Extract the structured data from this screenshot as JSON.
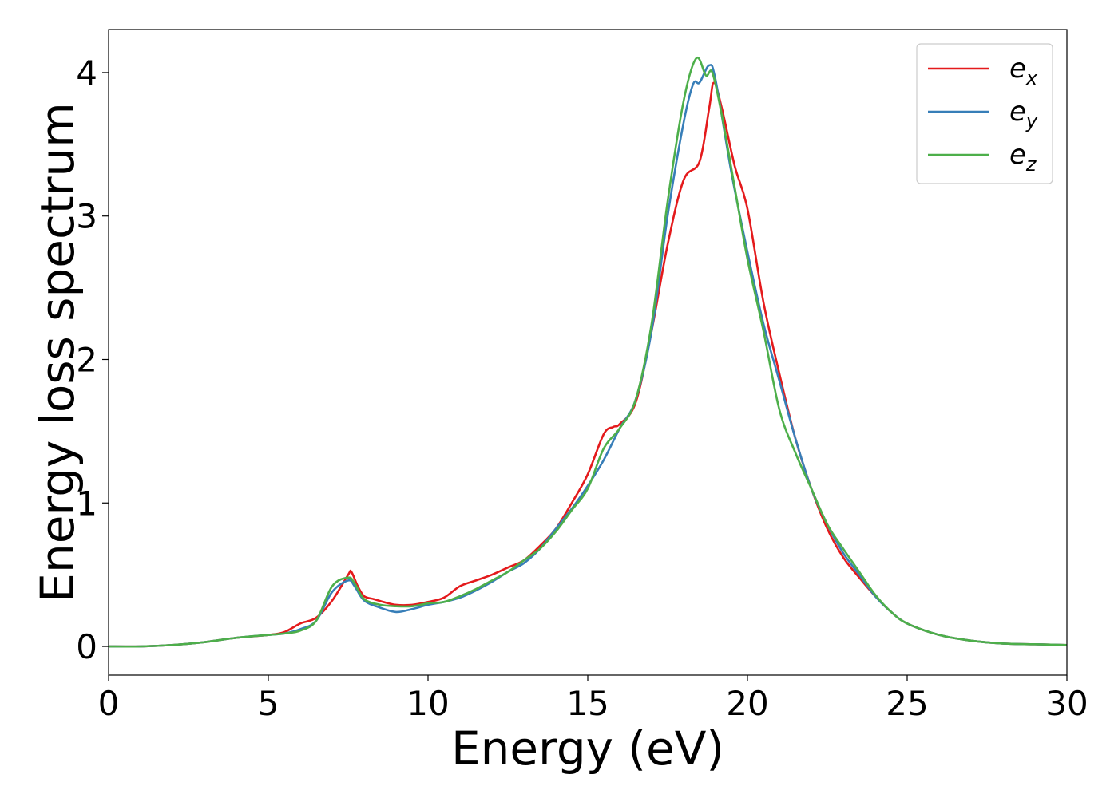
{
  "chart_data": {
    "type": "line",
    "title": "",
    "xlabel": "Energy (eV)",
    "ylabel": "Energy loss spectrum",
    "xlim": [
      0,
      30
    ],
    "ylim": [
      -0.2,
      4.3
    ],
    "xticks": [
      0,
      5,
      10,
      15,
      20,
      25,
      30
    ],
    "yticks": [
      0,
      1,
      2,
      3,
      4
    ],
    "grid": false,
    "legend_position": "top-right",
    "series": [
      {
        "name": "e",
        "subscript": "x",
        "color": "#e41a1c",
        "points": [
          [
            0,
            0.0
          ],
          [
            1,
            0.0
          ],
          [
            2,
            0.01
          ],
          [
            3,
            0.03
          ],
          [
            4,
            0.06
          ],
          [
            5,
            0.08
          ],
          [
            5.5,
            0.1
          ],
          [
            6,
            0.16
          ],
          [
            6.5,
            0.2
          ],
          [
            7,
            0.32
          ],
          [
            7.5,
            0.5
          ],
          [
            7.6,
            0.52
          ],
          [
            7.8,
            0.42
          ],
          [
            8,
            0.35
          ],
          [
            8.3,
            0.33
          ],
          [
            8.6,
            0.31
          ],
          [
            9,
            0.29
          ],
          [
            9.5,
            0.29
          ],
          [
            10,
            0.31
          ],
          [
            10.5,
            0.34
          ],
          [
            11,
            0.42
          ],
          [
            11.5,
            0.46
          ],
          [
            12,
            0.5
          ],
          [
            12.5,
            0.55
          ],
          [
            13,
            0.6
          ],
          [
            13.5,
            0.7
          ],
          [
            14,
            0.82
          ],
          [
            14.5,
            1.0
          ],
          [
            15,
            1.2
          ],
          [
            15.5,
            1.48
          ],
          [
            15.8,
            1.53
          ],
          [
            16,
            1.55
          ],
          [
            16.5,
            1.7
          ],
          [
            17,
            2.2
          ],
          [
            17.5,
            2.8
          ],
          [
            18,
            3.25
          ],
          [
            18.5,
            3.38
          ],
          [
            18.8,
            3.75
          ],
          [
            18.95,
            3.93
          ],
          [
            19.2,
            3.75
          ],
          [
            19.6,
            3.35
          ],
          [
            20,
            3.05
          ],
          [
            20.5,
            2.4
          ],
          [
            21,
            1.9
          ],
          [
            21.5,
            1.45
          ],
          [
            22,
            1.1
          ],
          [
            22.5,
            0.82
          ],
          [
            23,
            0.62
          ],
          [
            23.5,
            0.48
          ],
          [
            24,
            0.35
          ],
          [
            24.5,
            0.24
          ],
          [
            25,
            0.16
          ],
          [
            26,
            0.08
          ],
          [
            27,
            0.04
          ],
          [
            28,
            0.02
          ],
          [
            29,
            0.015
          ],
          [
            30,
            0.01
          ]
        ]
      },
      {
        "name": "e",
        "subscript": "y",
        "color": "#377eb8",
        "points": [
          [
            0,
            0.0
          ],
          [
            1,
            0.0
          ],
          [
            2,
            0.01
          ],
          [
            3,
            0.03
          ],
          [
            4,
            0.06
          ],
          [
            5,
            0.08
          ],
          [
            5.5,
            0.09
          ],
          [
            6,
            0.12
          ],
          [
            6.5,
            0.18
          ],
          [
            7,
            0.38
          ],
          [
            7.5,
            0.46
          ],
          [
            7.7,
            0.42
          ],
          [
            8,
            0.32
          ],
          [
            8.5,
            0.27
          ],
          [
            9,
            0.24
          ],
          [
            9.5,
            0.26
          ],
          [
            10,
            0.29
          ],
          [
            10.5,
            0.31
          ],
          [
            11,
            0.34
          ],
          [
            11.5,
            0.39
          ],
          [
            12,
            0.45
          ],
          [
            12.5,
            0.52
          ],
          [
            13,
            0.58
          ],
          [
            13.5,
            0.68
          ],
          [
            14,
            0.82
          ],
          [
            14.5,
            0.96
          ],
          [
            15,
            1.12
          ],
          [
            15.5,
            1.3
          ],
          [
            16,
            1.52
          ],
          [
            16.5,
            1.72
          ],
          [
            17,
            2.2
          ],
          [
            17.5,
            3.0
          ],
          [
            18,
            3.65
          ],
          [
            18.3,
            3.92
          ],
          [
            18.5,
            3.93
          ],
          [
            18.8,
            4.05
          ],
          [
            19,
            3.95
          ],
          [
            19.5,
            3.3
          ],
          [
            20,
            2.75
          ],
          [
            20.5,
            2.25
          ],
          [
            21,
            1.85
          ],
          [
            21.5,
            1.45
          ],
          [
            22,
            1.1
          ],
          [
            22.5,
            0.85
          ],
          [
            23,
            0.65
          ],
          [
            23.5,
            0.5
          ],
          [
            24,
            0.35
          ],
          [
            24.5,
            0.24
          ],
          [
            25,
            0.16
          ],
          [
            26,
            0.08
          ],
          [
            27,
            0.04
          ],
          [
            28,
            0.02
          ],
          [
            29,
            0.015
          ],
          [
            30,
            0.01
          ]
        ]
      },
      {
        "name": "e",
        "subscript": "z",
        "color": "#4daf4a",
        "points": [
          [
            0,
            0.0
          ],
          [
            1,
            0.0
          ],
          [
            2,
            0.01
          ],
          [
            3,
            0.03
          ],
          [
            4,
            0.06
          ],
          [
            5,
            0.08
          ],
          [
            5.5,
            0.09
          ],
          [
            6,
            0.11
          ],
          [
            6.5,
            0.18
          ],
          [
            7,
            0.42
          ],
          [
            7.5,
            0.48
          ],
          [
            7.7,
            0.44
          ],
          [
            8,
            0.33
          ],
          [
            8.5,
            0.29
          ],
          [
            9,
            0.28
          ],
          [
            9.5,
            0.28
          ],
          [
            10,
            0.3
          ],
          [
            10.5,
            0.31
          ],
          [
            11,
            0.35
          ],
          [
            11.5,
            0.4
          ],
          [
            12,
            0.46
          ],
          [
            12.5,
            0.52
          ],
          [
            13,
            0.6
          ],
          [
            13.5,
            0.68
          ],
          [
            14,
            0.8
          ],
          [
            14.5,
            0.95
          ],
          [
            15,
            1.1
          ],
          [
            15.5,
            1.38
          ],
          [
            16,
            1.52
          ],
          [
            16.5,
            1.72
          ],
          [
            17,
            2.25
          ],
          [
            17.5,
            3.1
          ],
          [
            18,
            3.8
          ],
          [
            18.4,
            4.1
          ],
          [
            18.7,
            3.98
          ],
          [
            18.9,
            4.0
          ],
          [
            19.2,
            3.7
          ],
          [
            19.6,
            3.2
          ],
          [
            20,
            2.7
          ],
          [
            20.5,
            2.2
          ],
          [
            21,
            1.65
          ],
          [
            21.5,
            1.35
          ],
          [
            22,
            1.1
          ],
          [
            22.5,
            0.85
          ],
          [
            23,
            0.68
          ],
          [
            23.5,
            0.52
          ],
          [
            24,
            0.36
          ],
          [
            24.5,
            0.24
          ],
          [
            25,
            0.16
          ],
          [
            26,
            0.08
          ],
          [
            27,
            0.04
          ],
          [
            28,
            0.02
          ],
          [
            29,
            0.015
          ],
          [
            30,
            0.01
          ]
        ]
      }
    ]
  }
}
